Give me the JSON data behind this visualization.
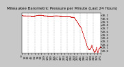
{
  "title": "Milwaukee Barometric Pressure per Minute (Last 24 Hours)",
  "bg_color": "#c8c8c8",
  "plot_bg_color": "#ffffff",
  "line_color": "#cc0000",
  "grid_color": "#888888",
  "ylim_low": 29.0,
  "ylim_high": 30.2,
  "ytick_labels": [
    "29.0",
    "29.1",
    "29.2",
    "29.3",
    "29.4",
    "29.5",
    "29.6",
    "29.7",
    "29.8",
    "29.9",
    "30.0",
    "30.1",
    "30.2"
  ],
  "ytick_vals": [
    29.0,
    29.1,
    29.2,
    29.3,
    29.4,
    29.5,
    29.6,
    29.7,
    29.8,
    29.9,
    30.0,
    30.1,
    30.2
  ],
  "pressure_data": [
    30.12,
    30.11,
    30.11,
    30.1,
    30.1,
    30.1,
    30.09,
    30.09,
    30.09,
    30.09,
    30.09,
    30.09,
    30.09,
    30.09,
    30.09,
    30.09,
    30.09,
    30.09,
    30.09,
    30.09,
    30.09,
    30.08,
    30.08,
    30.08,
    30.08,
    30.08,
    30.08,
    30.08,
    30.08,
    30.08,
    30.08,
    30.08,
    30.08,
    30.08,
    30.08,
    30.08,
    30.08,
    30.08,
    30.08,
    30.08,
    30.08,
    30.08,
    30.08,
    30.08,
    30.07,
    30.07,
    30.07,
    30.07,
    30.07,
    30.07,
    30.07,
    30.07,
    30.07,
    30.07,
    30.07,
    30.07,
    30.07,
    30.07,
    30.07,
    30.07,
    30.08,
    30.08,
    30.08,
    30.09,
    30.09,
    30.09,
    30.09,
    30.09,
    30.09,
    30.1,
    30.1,
    30.1,
    30.1,
    30.1,
    30.1,
    30.1,
    30.1,
    30.1,
    30.1,
    30.1,
    30.11,
    30.11,
    30.11,
    30.11,
    30.11,
    30.11,
    30.11,
    30.11,
    30.11,
    30.11,
    30.11,
    30.11,
    30.11,
    30.11,
    30.11,
    30.1,
    30.1,
    30.1,
    30.1,
    30.1,
    30.1,
    30.1,
    30.1,
    30.1,
    30.09,
    30.09,
    30.09,
    30.09,
    30.09,
    30.09,
    30.09,
    30.09,
    30.09,
    30.09,
    30.09,
    30.09,
    30.09,
    30.08,
    30.08,
    30.08,
    30.08,
    30.08,
    30.08,
    30.07,
    30.07,
    30.07,
    30.07,
    30.07,
    30.07,
    30.07,
    30.07,
    30.07,
    30.07,
    30.07,
    30.07,
    30.07,
    30.07,
    30.07,
    30.07,
    30.07,
    30.07,
    30.07,
    30.07,
    30.07,
    30.07,
    30.07,
    30.07,
    30.07,
    30.07,
    30.08,
    30.08,
    30.08,
    30.08,
    30.08,
    30.08,
    30.08,
    30.08,
    30.08,
    30.08,
    30.08,
    30.09,
    30.09,
    30.09,
    30.09,
    30.09,
    30.09,
    30.09,
    30.09,
    30.09,
    30.09,
    30.09,
    30.09,
    30.09,
    30.08,
    30.08,
    30.08,
    30.08,
    30.08,
    30.08,
    30.08,
    30.07,
    30.07,
    30.07,
    30.07,
    30.07,
    30.07,
    30.07,
    30.07,
    30.07,
    30.07,
    30.07,
    30.07,
    30.07,
    30.06,
    30.06,
    30.06,
    30.06,
    30.06,
    30.06,
    30.06,
    30.06,
    30.06,
    30.06,
    30.06,
    30.06,
    30.06,
    30.06,
    30.06,
    30.06,
    30.06,
    30.06,
    30.06,
    30.06,
    30.06,
    30.06,
    30.06,
    30.06,
    30.06,
    30.06,
    30.06,
    30.06,
    30.06,
    30.06,
    30.06,
    30.06,
    30.06,
    30.06,
    30.06,
    30.06,
    30.06,
    30.06,
    30.06,
    30.06,
    30.05,
    30.05,
    30.05,
    30.05,
    30.05,
    30.05,
    30.05,
    30.05,
    30.05,
    30.05,
    30.05,
    30.04,
    30.04,
    30.04,
    30.04,
    30.04,
    30.04,
    30.03,
    30.02,
    30.01,
    30.0,
    29.99,
    29.98,
    29.97,
    29.96,
    29.95,
    29.94,
    29.93,
    29.92,
    29.91,
    29.9,
    29.89,
    29.88,
    29.87,
    29.86,
    29.85,
    29.84,
    29.83,
    29.82,
    29.81,
    29.8,
    29.79,
    29.78,
    29.77,
    29.76,
    29.75,
    29.74,
    29.73,
    29.72,
    29.71,
    29.7,
    29.68,
    29.66,
    29.64,
    29.62,
    29.6,
    29.58,
    29.56,
    29.54,
    29.52,
    29.5,
    29.48,
    29.46,
    29.44,
    29.42,
    29.4,
    29.38,
    29.36,
    29.34,
    29.32,
    29.3,
    29.28,
    29.26,
    29.24,
    29.22,
    29.2,
    29.18,
    29.16,
    29.14,
    29.12,
    29.1,
    29.09,
    29.08,
    29.07,
    29.06,
    29.05,
    29.05,
    29.04,
    29.04,
    29.04,
    29.04,
    29.05,
    29.06,
    29.07,
    29.08,
    29.09,
    29.1,
    29.12,
    29.14,
    29.16,
    29.18,
    29.15,
    29.13,
    29.11,
    29.09,
    29.07,
    29.05,
    29.03,
    29.01,
    28.99,
    28.98,
    28.97,
    28.97,
    28.97,
    28.97,
    28.98,
    28.99,
    29.0,
    29.01,
    29.02,
    29.05,
    29.08,
    29.11,
    29.07,
    29.04,
    29.01,
    28.98,
    28.96,
    28.96,
    28.97,
    28.99,
    29.01,
    29.03,
    29.05,
    29.06,
    29.07,
    29.08,
    29.09,
    29.1,
    29.11,
    29.12,
    29.11,
    29.1
  ],
  "num_vgrid": 12,
  "title_fontsize": 4.0,
  "tick_fontsize": 3.0,
  "marker_size": 0.5,
  "linewidth": 0.35
}
